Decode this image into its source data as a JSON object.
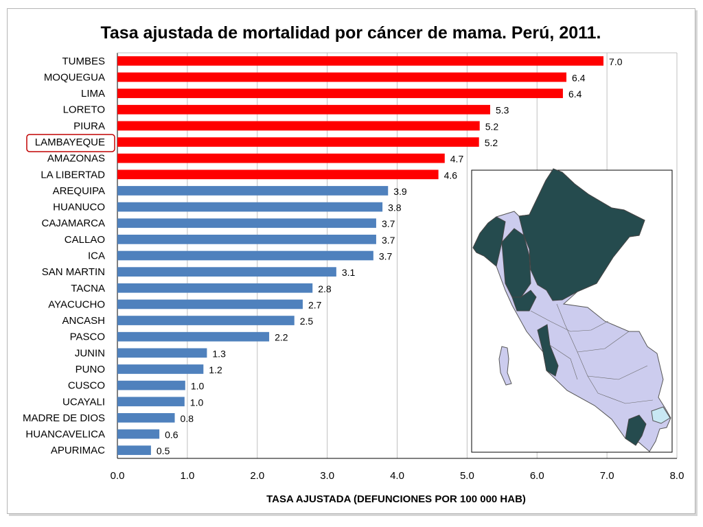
{
  "chart_data": {
    "type": "bar",
    "orientation": "horizontal",
    "title": "Tasa ajustada de mortalidad por cáncer de mama. Perú, 2011.",
    "xlabel": "TASA AJUSTADA (DEFUNCIONES POR 100 000 HAB)",
    "ylabel": "",
    "xlim": [
      0,
      8
    ],
    "xticks": [
      "0.0",
      "1.0",
      "2.0",
      "3.0",
      "4.0",
      "5.0",
      "6.0",
      "7.0",
      "8.0"
    ],
    "grid": true,
    "categories": [
      "TUMBES",
      "MOQUEGUA",
      "LIMA",
      "LORETO",
      "PIURA",
      "LAMBAYEQUE",
      "AMAZONAS",
      "LA LIBERTAD",
      "AREQUIPA",
      "HUANUCO",
      "CAJAMARCA",
      "CALLAO",
      "ICA",
      "SAN MARTIN",
      "TACNA",
      "AYACUCHO",
      "ANCASH",
      "PASCO",
      "JUNIN",
      "PUNO",
      "CUSCO",
      "UCAYALI",
      "MADRE DE DIOS",
      "HUANCAVELICA",
      "APURIMAC"
    ],
    "values": [
      6.95,
      6.42,
      6.37,
      5.33,
      5.18,
      5.17,
      4.68,
      4.59,
      3.87,
      3.79,
      3.7,
      3.7,
      3.66,
      3.13,
      2.79,
      2.65,
      2.53,
      2.17,
      1.28,
      1.23,
      0.97,
      0.96,
      0.82,
      0.6,
      0.48
    ],
    "value_labels": [
      "7.0",
      "6.4",
      "6.4",
      "5.3",
      "5.2",
      "5.2",
      "4.7",
      "4.6",
      "3.9",
      "3.8",
      "3.7",
      "3.7",
      "3.7",
      "3.1",
      "2.8",
      "2.7",
      "2.5",
      "2.2",
      "1.3",
      "1.2",
      "1.0",
      "1.0",
      "0.8",
      "0.6",
      "0.5"
    ],
    "highlight_count": 8,
    "highlighted_category": "LAMBAYEQUE",
    "colors": {
      "high": "#ff0000",
      "low": "#4f81bd",
      "grid": "#bfbfbf",
      "map_high": "#254b4e",
      "map_low": "#ccccee",
      "highlight_box": "#c00000"
    }
  }
}
